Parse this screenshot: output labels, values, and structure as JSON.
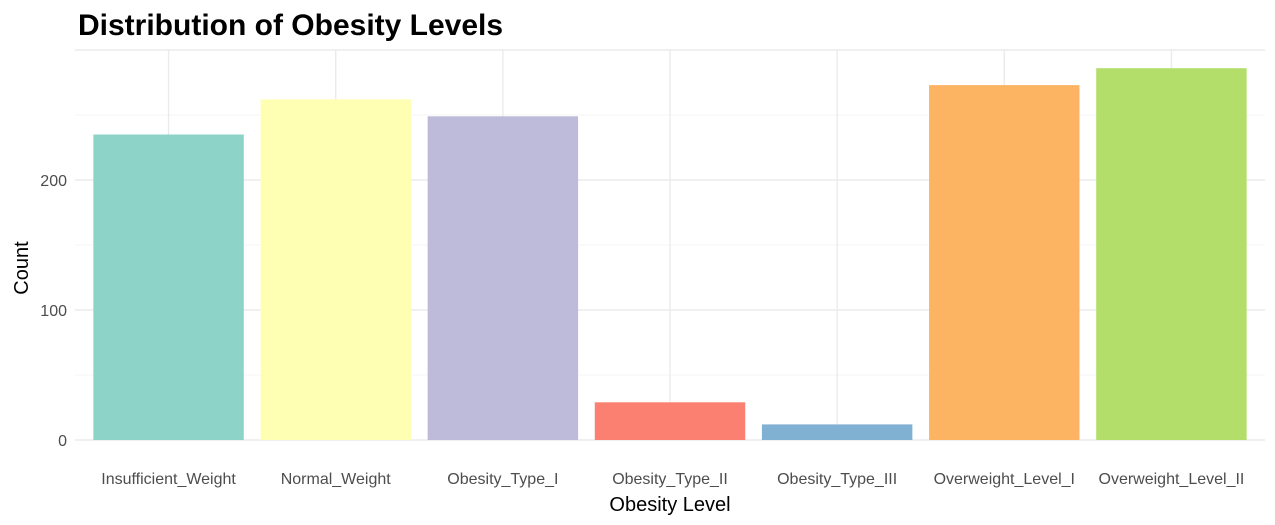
{
  "chart_data": {
    "type": "bar",
    "title": "Distribution of Obesity Levels",
    "xlabel": "Obesity Level",
    "ylabel": "Count",
    "categories": [
      "Insufficient_Weight",
      "Normal_Weight",
      "Obesity_Type_I",
      "Obesity_Type_II",
      "Obesity_Type_III",
      "Overweight_Level_I",
      "Overweight_Level_II"
    ],
    "values": [
      235,
      262,
      249,
      29,
      12,
      273,
      286
    ],
    "colors": [
      "#8DD3C7",
      "#FFFFB3",
      "#BEBADA",
      "#FB8072",
      "#80B1D3",
      "#FDB462",
      "#B3DE69"
    ],
    "ylim": [
      0,
      300
    ],
    "yticks": [
      0,
      100,
      200
    ],
    "grid": true,
    "legend": "none"
  }
}
